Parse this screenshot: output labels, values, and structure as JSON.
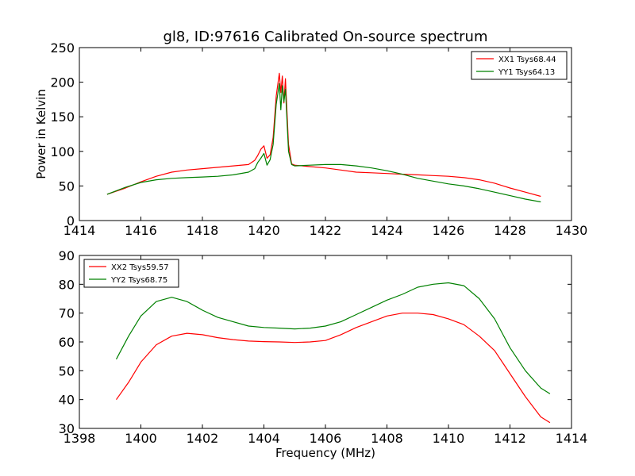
{
  "chart_data": [
    {
      "type": "line",
      "title": "gl8, ID:97616 Calibrated On-source spectrum",
      "xlabel": "",
      "ylabel": "Power in Kelvin",
      "xlim": [
        1414,
        1430
      ],
      "ylim": [
        0,
        250
      ],
      "xticks": [
        1414,
        1416,
        1418,
        1420,
        1422,
        1424,
        1426,
        1428,
        1430
      ],
      "yticks": [
        0,
        50,
        100,
        150,
        200,
        250
      ],
      "legend_position": "upper right",
      "series": [
        {
          "name": "XX1 Tsys68.44",
          "color": "#ff0000",
          "x": [
            1414.9,
            1415.5,
            1416.0,
            1416.5,
            1417.0,
            1417.5,
            1418.0,
            1418.5,
            1419.0,
            1419.5,
            1419.7,
            1419.8,
            1419.9,
            1420.0,
            1420.1,
            1420.2,
            1420.3,
            1420.4,
            1420.5,
            1420.55,
            1420.6,
            1420.65,
            1420.7,
            1420.8,
            1420.9,
            1421.0,
            1421.5,
            1422.0,
            1422.5,
            1423.0,
            1423.5,
            1424.0,
            1424.5,
            1425.0,
            1425.5,
            1426.0,
            1426.5,
            1427.0,
            1427.5,
            1428.0,
            1428.5,
            1429.0
          ],
          "values": [
            38,
            47,
            56,
            64,
            70,
            73,
            75,
            77,
            79,
            81,
            87,
            94,
            103,
            108,
            90,
            95,
            120,
            180,
            213,
            185,
            209,
            170,
            205,
            110,
            82,
            80,
            78,
            76,
            73,
            70,
            69,
            68,
            67,
            66,
            65,
            64,
            62,
            59,
            54,
            47,
            41,
            35
          ]
        },
        {
          "name": "YY1 Tsys64.13",
          "color": "#008000",
          "x": [
            1414.9,
            1415.5,
            1416.0,
            1416.5,
            1417.0,
            1417.5,
            1418.0,
            1418.5,
            1419.0,
            1419.5,
            1419.7,
            1419.8,
            1419.9,
            1420.0,
            1420.1,
            1420.2,
            1420.3,
            1420.4,
            1420.5,
            1420.55,
            1420.6,
            1420.65,
            1420.7,
            1420.8,
            1420.9,
            1421.0,
            1421.5,
            1422.0,
            1422.5,
            1423.0,
            1423.5,
            1424.0,
            1424.5,
            1425.0,
            1425.5,
            1426.0,
            1426.5,
            1427.0,
            1427.5,
            1428.0,
            1428.5,
            1429.0
          ],
          "values": [
            38,
            48,
            55,
            59,
            61,
            62,
            63,
            64,
            66,
            70,
            75,
            84,
            90,
            97,
            80,
            88,
            110,
            168,
            198,
            160,
            195,
            172,
            190,
            100,
            81,
            79,
            80,
            81,
            81,
            79,
            76,
            72,
            67,
            61,
            57,
            53,
            50,
            46,
            41,
            36,
            31,
            27
          ]
        }
      ]
    },
    {
      "type": "line",
      "title": "",
      "xlabel": "Frequency (MHz)",
      "ylabel": "",
      "xlim": [
        1398,
        1414
      ],
      "ylim": [
        30,
        90
      ],
      "xticks": [
        1398,
        1400,
        1402,
        1404,
        1406,
        1408,
        1410,
        1412,
        1414
      ],
      "yticks": [
        30,
        40,
        50,
        60,
        70,
        80,
        90
      ],
      "legend_position": "upper left",
      "series": [
        {
          "name": "XX2 Tsys59.57",
          "color": "#ff0000",
          "x": [
            1399.2,
            1399.6,
            1400.0,
            1400.5,
            1401.0,
            1401.5,
            1402.0,
            1402.5,
            1403.0,
            1403.5,
            1404.0,
            1404.5,
            1405.0,
            1405.5,
            1406.0,
            1406.5,
            1407.0,
            1407.5,
            1408.0,
            1408.5,
            1409.0,
            1409.5,
            1410.0,
            1410.5,
            1411.0,
            1411.5,
            1412.0,
            1412.5,
            1413.0,
            1413.3
          ],
          "values": [
            40,
            46,
            53,
            59,
            62,
            63,
            62.5,
            61.5,
            60.8,
            60.3,
            60.1,
            60.0,
            59.8,
            60.0,
            60.5,
            62.5,
            65,
            67,
            69,
            70,
            70,
            69.5,
            68,
            66,
            62,
            57,
            49,
            41,
            34,
            32
          ]
        },
        {
          "name": "YY2 Tsys68.75",
          "color": "#008000",
          "x": [
            1399.2,
            1399.6,
            1400.0,
            1400.5,
            1401.0,
            1401.5,
            1402.0,
            1402.5,
            1403.0,
            1403.5,
            1404.0,
            1404.5,
            1405.0,
            1405.5,
            1406.0,
            1406.5,
            1407.0,
            1407.5,
            1408.0,
            1408.5,
            1409.0,
            1409.5,
            1410.0,
            1410.5,
            1411.0,
            1411.5,
            1412.0,
            1412.5,
            1413.0,
            1413.3
          ],
          "values": [
            54,
            62,
            69,
            74,
            75.5,
            74,
            71,
            68.5,
            67,
            65.5,
            65,
            64.8,
            64.5,
            64.8,
            65.5,
            67,
            69.5,
            72,
            74.5,
            76.5,
            79,
            80,
            80.5,
            79.5,
            75,
            68,
            58,
            50,
            44,
            42
          ]
        }
      ]
    }
  ]
}
